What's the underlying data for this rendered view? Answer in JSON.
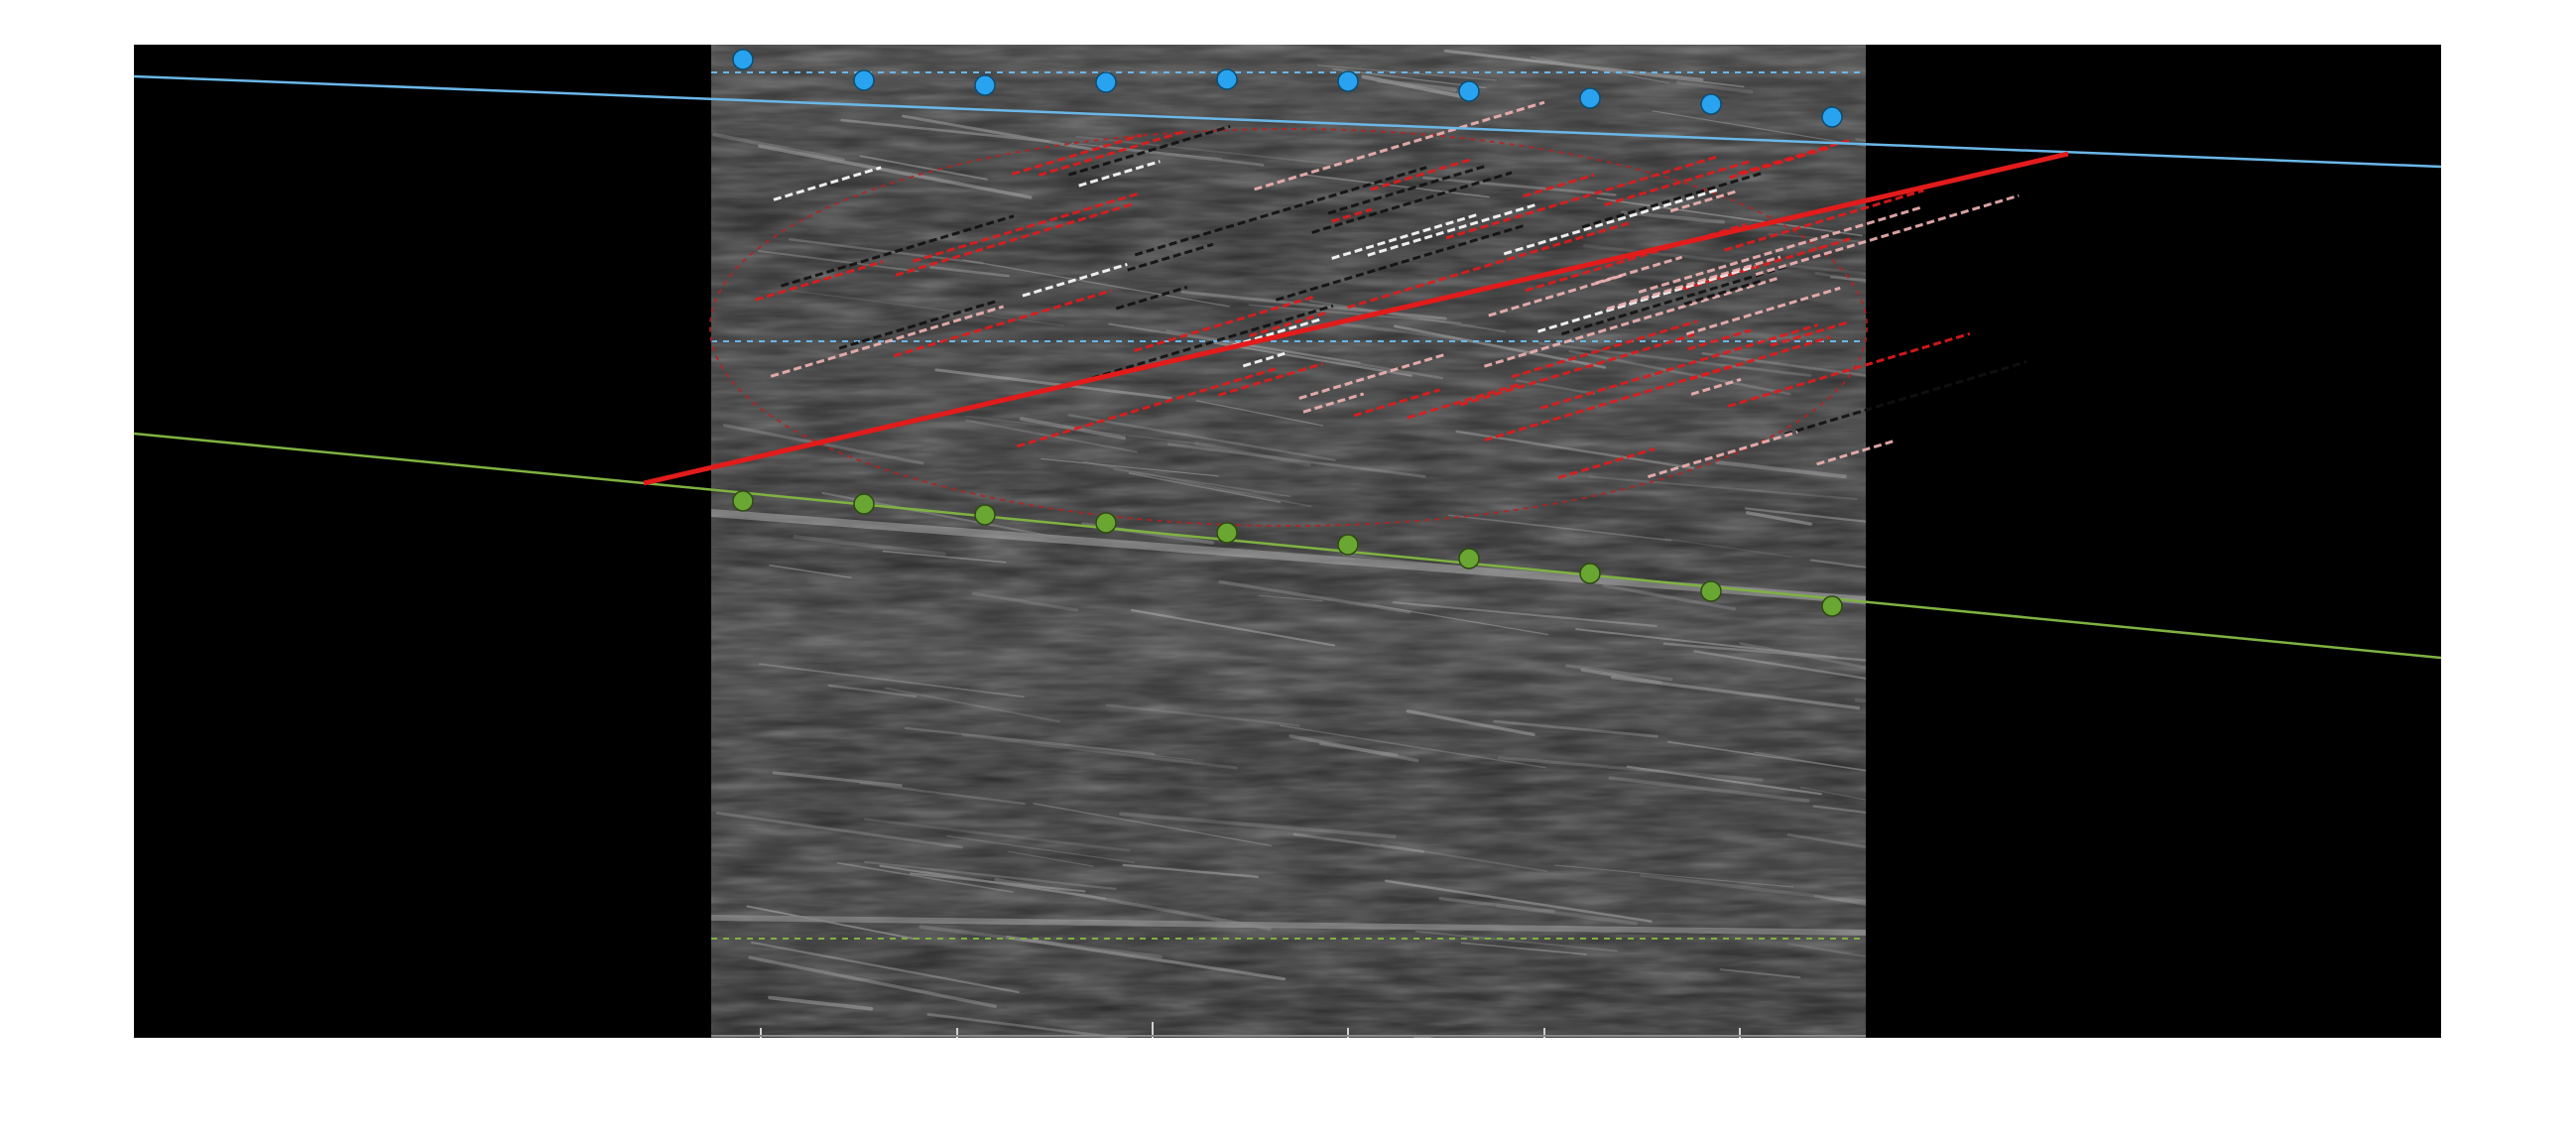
{
  "viewer": {
    "colors": {
      "background": "#000000",
      "aponeurosis_superior": "#6ab7e8",
      "aponeurosis_inferior": "#7fb241",
      "fascicle": "#e31b1b",
      "roi_ellipse": "#b42222",
      "superior_markers": "#29a3ef",
      "inferior_markers": "#6aa632",
      "tick_marks": "#d0d0d0"
    },
    "overlays": {
      "superior_aponeurosis_line": "line",
      "inferior_aponeurosis_line": "line",
      "fascicle_estimate_line": "line",
      "roi_ellipse": "ellipse",
      "superior_marker_count": 10,
      "inferior_marker_count": 10
    },
    "icons": {
      "superior_marker": "circle-marker-icon",
      "inferior_marker": "circle-marker-icon"
    }
  }
}
